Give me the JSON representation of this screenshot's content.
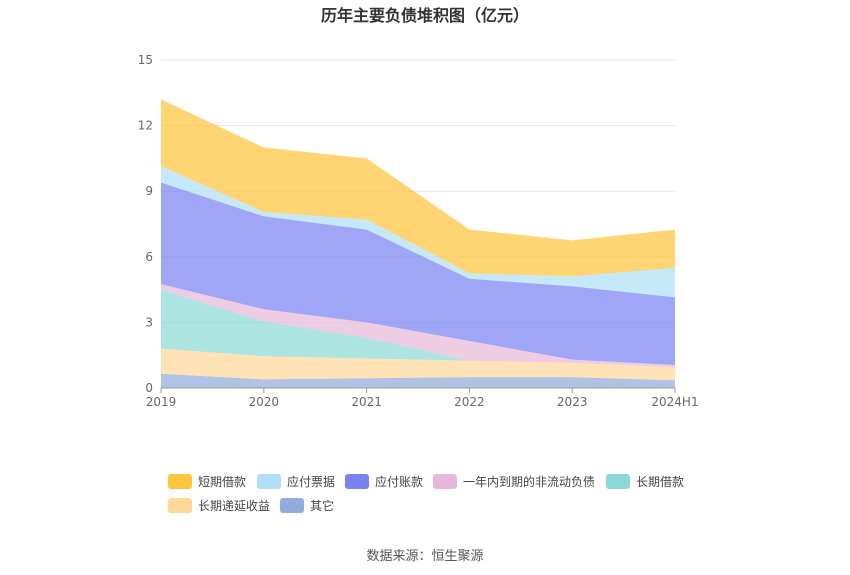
{
  "title": "历年主要负债堆积图（亿元）",
  "source": "数据来源：恒生聚源",
  "chart_data": {
    "type": "area",
    "stacked": true,
    "categories": [
      "2019",
      "2020",
      "2021",
      "2022",
      "2023",
      "2024H1"
    ],
    "ylim": [
      0,
      15
    ],
    "yticks": [
      0,
      3,
      6,
      9,
      12,
      15
    ],
    "grid": true,
    "legend_position": "bottom",
    "series": [
      {
        "name": "其它",
        "color": "#91ACDD",
        "values": [
          0.65,
          0.4,
          0.45,
          0.5,
          0.5,
          0.35
        ]
      },
      {
        "name": "长期递延收益",
        "color": "#FFD89A",
        "values": [
          1.15,
          1.05,
          0.9,
          0.75,
          0.65,
          0.6
        ]
      },
      {
        "name": "长期借款",
        "color": "#8AD9D6",
        "values": [
          2.7,
          1.6,
          0.95,
          0.0,
          0.0,
          0.0
        ]
      },
      {
        "name": "一年内到期的非流动负债",
        "color": "#E8B8DA",
        "values": [
          0.25,
          0.55,
          0.7,
          0.9,
          0.15,
          0.1
        ]
      },
      {
        "name": "应付账款",
        "color": "#7B83F2",
        "values": [
          4.65,
          4.25,
          4.25,
          2.85,
          3.35,
          3.1
        ]
      },
      {
        "name": "应付票据",
        "color": "#AEE0F7",
        "values": [
          0.75,
          0.2,
          0.45,
          0.25,
          0.45,
          1.35
        ]
      },
      {
        "name": "短期借款",
        "color": "#FFC53D",
        "values": [
          3.05,
          2.95,
          2.8,
          2.0,
          1.65,
          1.75
        ]
      }
    ],
    "legend_order": [
      "短期借款",
      "应付票据",
      "应付账款",
      "一年内到期的非流动负债",
      "长期借款",
      "长期递延收益",
      "其它"
    ]
  }
}
